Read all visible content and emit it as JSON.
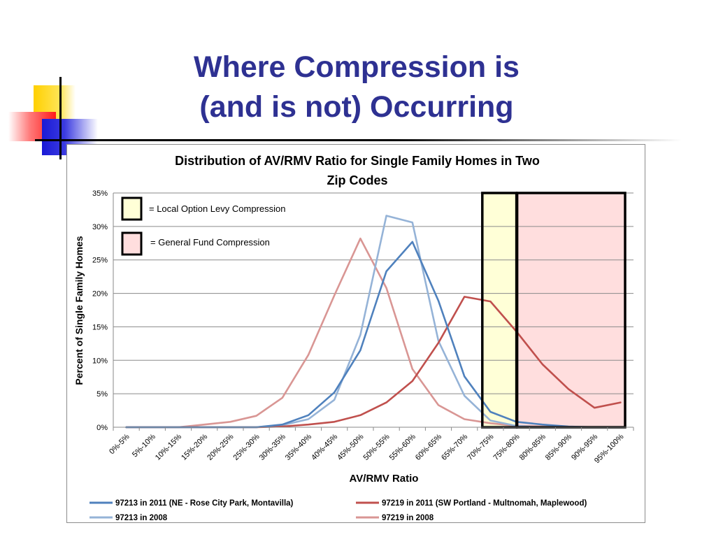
{
  "slide": {
    "title_line1": "Where Compression is",
    "title_line2": "(and is not) Occurring",
    "colors": {
      "title": "#2e3192",
      "accent_yellow": "#ffd000",
      "accent_red": "#ff1a1a",
      "accent_blue": "#1a1ad6"
    }
  },
  "chart_data": {
    "type": "line",
    "title_line1": "Distribution of AV/RMV Ratio for Single Family Homes in Two",
    "title_line2": "Zip Codes",
    "xlabel": "AV/RMV Ratio",
    "ylabel": "Percent of Single Family Homes",
    "ylim": [
      0,
      35
    ],
    "yticks": [
      "0%",
      "5%",
      "10%",
      "15%",
      "20%",
      "25%",
      "30%",
      "35%"
    ],
    "grid": true,
    "legend_position": "bottom",
    "categories": [
      "0%-5%",
      "5%-10%",
      "10%-15%",
      "15%-20%",
      "20%-25%",
      "25%-30%",
      "30%-35%",
      "35%-40%",
      "40%-45%",
      "45%-50%",
      "50%-55%",
      "55%-60%",
      "60%-65%",
      "65%-70%",
      "70%-75%",
      "75%-80%",
      "80%-85%",
      "85%-90%",
      "90%-95%",
      "95%-100%"
    ],
    "series": [
      {
        "name": "97213 in 2011 (NE - Rose City Park, Montavilla)",
        "color": "#4f81bd",
        "values": [
          0,
          0,
          0,
          0,
          0,
          0,
          0.4,
          1.8,
          5.2,
          11.5,
          23.3,
          27.7,
          18.9,
          7.6,
          2.3,
          0.8,
          0.4,
          0.1,
          0,
          0
        ]
      },
      {
        "name": "97219 in 2011 (SW Portland - Multnomah, Maplewood)",
        "color": "#c0504d",
        "values": [
          0,
          0,
          0,
          0,
          0,
          0,
          0.1,
          0.4,
          0.8,
          1.8,
          3.7,
          6.9,
          12.6,
          19.5,
          18.8,
          14.3,
          9.4,
          5.7,
          2.9,
          3.7
        ]
      },
      {
        "name": "97213 in 2008",
        "color": "#95b3d7",
        "values": [
          0,
          0,
          0,
          0,
          0,
          0,
          0.3,
          1.2,
          4.1,
          13.8,
          31.6,
          30.6,
          12.9,
          4.7,
          1.0,
          0.2,
          0,
          0,
          0,
          0
        ]
      },
      {
        "name": "97219 in 2008",
        "color": "#d99694",
        "values": [
          0,
          0,
          0,
          0.4,
          0.8,
          1.7,
          4.4,
          10.8,
          19.7,
          28.2,
          20.8,
          8.7,
          3.3,
          1.2,
          0.6,
          0.2,
          0.1,
          0,
          0,
          0
        ]
      }
    ],
    "annotations": {
      "local_option_label": "= Local Option Levy Compression",
      "general_fund_label": "= General Fund Compression",
      "local_option_color": "#ffffd7",
      "general_fund_color": "#ffdede",
      "local_option_range": [
        "70%-75%",
        "75%-80%"
      ],
      "general_fund_range": [
        "75%-80%",
        "95%-100%"
      ]
    }
  }
}
